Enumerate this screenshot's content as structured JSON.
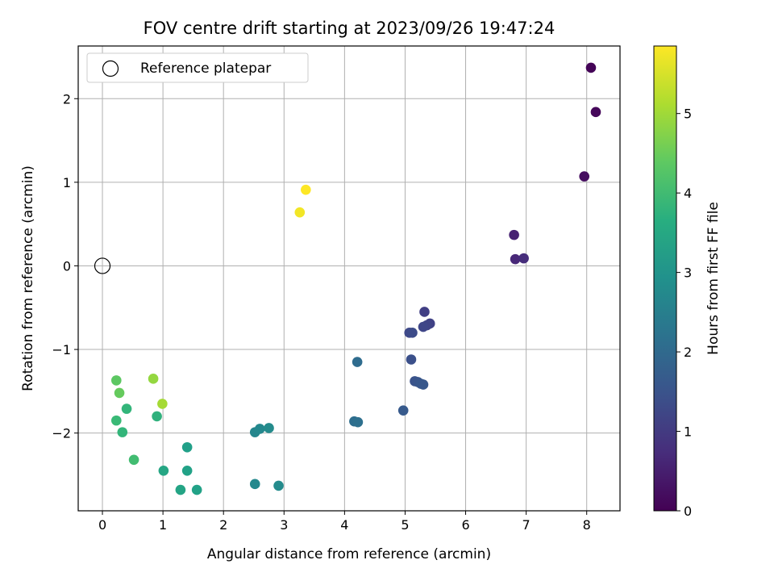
{
  "chart_data": {
    "type": "scatter",
    "title": "FOV centre drift starting at 2023/09/26 19:47:24",
    "xlabel": "Angular distance from reference (arcmin)",
    "ylabel": "Rotation from reference (arcmin)",
    "xlim": [
      -0.4,
      8.55
    ],
    "ylim": [
      -2.93,
      2.63
    ],
    "xticks": [
      0,
      1,
      2,
      3,
      4,
      5,
      6,
      7,
      8
    ],
    "yticks": [
      -2,
      -1,
      0,
      1,
      2
    ],
    "grid": true,
    "legend": {
      "position": "top-left",
      "entries": [
        "Reference platepar"
      ]
    },
    "reference_point": {
      "x": 0,
      "y": 0
    },
    "colorbar": {
      "label": "Hours from first FF file",
      "colormap": "viridis",
      "range": [
        0,
        5.85
      ],
      "ticks": [
        0,
        1,
        2,
        3,
        4,
        5
      ]
    },
    "points": [
      {
        "x": 8.07,
        "y": 2.37,
        "c": 0.05
      },
      {
        "x": 8.15,
        "y": 1.84,
        "c": 0.1
      },
      {
        "x": 7.96,
        "y": 1.07,
        "c": 0.2
      },
      {
        "x": 6.8,
        "y": 0.37,
        "c": 0.55
      },
      {
        "x": 6.82,
        "y": 0.08,
        "c": 0.65
      },
      {
        "x": 6.96,
        "y": 0.09,
        "c": 0.75
      },
      {
        "x": 5.32,
        "y": -0.55,
        "c": 1.1
      },
      {
        "x": 5.41,
        "y": -0.69,
        "c": 1.15
      },
      {
        "x": 5.36,
        "y": -0.71,
        "c": 1.2
      },
      {
        "x": 5.3,
        "y": -0.73,
        "c": 1.25
      },
      {
        "x": 5.07,
        "y": -0.8,
        "c": 1.3
      },
      {
        "x": 5.12,
        "y": -0.8,
        "c": 1.35
      },
      {
        "x": 5.1,
        "y": -1.12,
        "c": 1.45
      },
      {
        "x": 5.16,
        "y": -1.38,
        "c": 1.5
      },
      {
        "x": 5.21,
        "y": -1.39,
        "c": 1.55
      },
      {
        "x": 5.26,
        "y": -1.41,
        "c": 1.6
      },
      {
        "x": 5.3,
        "y": -1.42,
        "c": 1.6
      },
      {
        "x": 4.97,
        "y": -1.73,
        "c": 1.65
      },
      {
        "x": 4.21,
        "y": -1.15,
        "c": 2.05
      },
      {
        "x": 4.16,
        "y": -1.86,
        "c": 2.1
      },
      {
        "x": 4.22,
        "y": -1.87,
        "c": 2.15
      },
      {
        "x": 2.52,
        "y": -1.99,
        "c": 2.7
      },
      {
        "x": 2.6,
        "y": -1.95,
        "c": 2.75
      },
      {
        "x": 2.75,
        "y": -1.94,
        "c": 2.8
      },
      {
        "x": 2.52,
        "y": -2.61,
        "c": 2.75
      },
      {
        "x": 2.91,
        "y": -2.63,
        "c": 2.8
      },
      {
        "x": 1.4,
        "y": -2.17,
        "c": 3.3
      },
      {
        "x": 1.01,
        "y": -2.45,
        "c": 3.45
      },
      {
        "x": 1.4,
        "y": -2.45,
        "c": 3.35
      },
      {
        "x": 1.29,
        "y": -2.68,
        "c": 3.4
      },
      {
        "x": 1.56,
        "y": -2.68,
        "c": 3.35
      },
      {
        "x": 0.9,
        "y": -1.8,
        "c": 3.75
      },
      {
        "x": 0.4,
        "y": -1.71,
        "c": 3.85
      },
      {
        "x": 0.23,
        "y": -1.85,
        "c": 3.95
      },
      {
        "x": 0.33,
        "y": -1.99,
        "c": 3.85
      },
      {
        "x": 0.52,
        "y": -2.32,
        "c": 4.05
      },
      {
        "x": 0.23,
        "y": -1.37,
        "c": 4.35
      },
      {
        "x": 0.28,
        "y": -1.52,
        "c": 4.45
      },
      {
        "x": 0.84,
        "y": -1.35,
        "c": 4.9
      },
      {
        "x": 0.99,
        "y": -1.65,
        "c": 5.05
      },
      {
        "x": 3.26,
        "y": 0.64,
        "c": 5.75
      },
      {
        "x": 3.36,
        "y": 0.91,
        "c": 5.85
      }
    ]
  }
}
